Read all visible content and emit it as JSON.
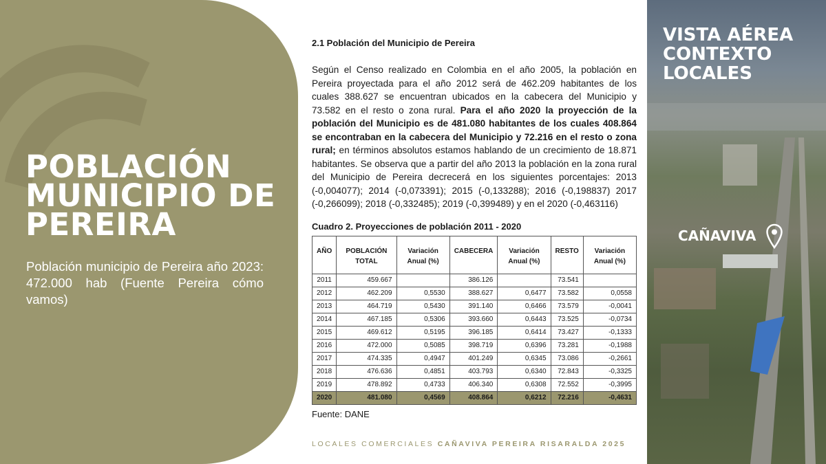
{
  "left": {
    "title": "POBLACIÓN MUNICIPIO DE PEREIRA",
    "subtitle": "Población municipio de Pereira año 2023: 472.000 hab (Fuente Pereira cómo vamos)",
    "color": "#9b976f"
  },
  "main": {
    "section_title": "2.1 Población del Municipio de Pereira",
    "para_1": "Según el Censo realizado en Colombia en el año 2005, la población en Pereira proyectada para el año 2012 será de 462.209 habitantes de los cuales 388.627 se encuentran ubicados en la cabecera del Municipio y 73.582 en el resto o zona rural. ",
    "para_bold": "Para el año 2020 la proyección de la población del Municipio es de 481.080 habitantes de los cuales 408.864 se encontraban en la cabecera del Municipio y 72.216 en el resto o zona rural;",
    "para_2": " en términos absolutos estamos hablando de un crecimiento de 18.871 habitantes. Se observa que a partir del año 2013 la población en la zona rural del Municipio de Pereira decrecerá en los siguientes porcentajes: 2013 (-0,004077); 2014 (-0,073391); 2015 (-0,133288); 2016 (-0,198837) 2017 (-0,266099); 2018 (-0,332485); 2019 (-0,399489) y en el 2020 (-0,463116)",
    "table_title": "Cuadro 2. Proyecciones de población 2011 - 2020",
    "table": {
      "headers": [
        "AÑO",
        "POBLACIÓN TOTAL",
        "Variación Anual (%)",
        "CABECERA",
        "Variación Anual (%)",
        "RESTO",
        "Variación Anual (%)"
      ],
      "rows": [
        [
          "2011",
          "459.667",
          "",
          "386.126",
          "",
          "73.541",
          ""
        ],
        [
          "2012",
          "462.209",
          "0,5530",
          "388.627",
          "0,6477",
          "73.582",
          "0,0558"
        ],
        [
          "2013",
          "464.719",
          "0,5430",
          "391.140",
          "0,6466",
          "73.579",
          "-0,0041"
        ],
        [
          "2014",
          "467.185",
          "0,5306",
          "393.660",
          "0,6443",
          "73.525",
          "-0,0734"
        ],
        [
          "2015",
          "469.612",
          "0,5195",
          "396.185",
          "0,6414",
          "73.427",
          "-0,1333"
        ],
        [
          "2016",
          "472.000",
          "0,5085",
          "398.719",
          "0,6396",
          "73.281",
          "-0,1988"
        ],
        [
          "2017",
          "474.335",
          "0,4947",
          "401.249",
          "0,6345",
          "73.086",
          "-0,2661"
        ],
        [
          "2018",
          "476.636",
          "0,4851",
          "403.793",
          "0,6340",
          "72.843",
          "-0,3325"
        ],
        [
          "2019",
          "478.892",
          "0,4733",
          "406.340",
          "0,6308",
          "72.552",
          "-0,3995"
        ],
        [
          "2020",
          "481.080",
          "0,4569",
          "408.864",
          "0,6212",
          "72.216",
          "-0,4631"
        ]
      ]
    },
    "source": "Fuente: DANE"
  },
  "footer": {
    "light": "LOCALES COMERCIALES ",
    "bold": "CAÑAVIVA PEREIRA RISARALDA 2025"
  },
  "photo": {
    "title": "VISTA AÉREA CONTEXTO LOCALES",
    "label": "CAÑAVIVA",
    "icon": "map-pin-icon"
  }
}
